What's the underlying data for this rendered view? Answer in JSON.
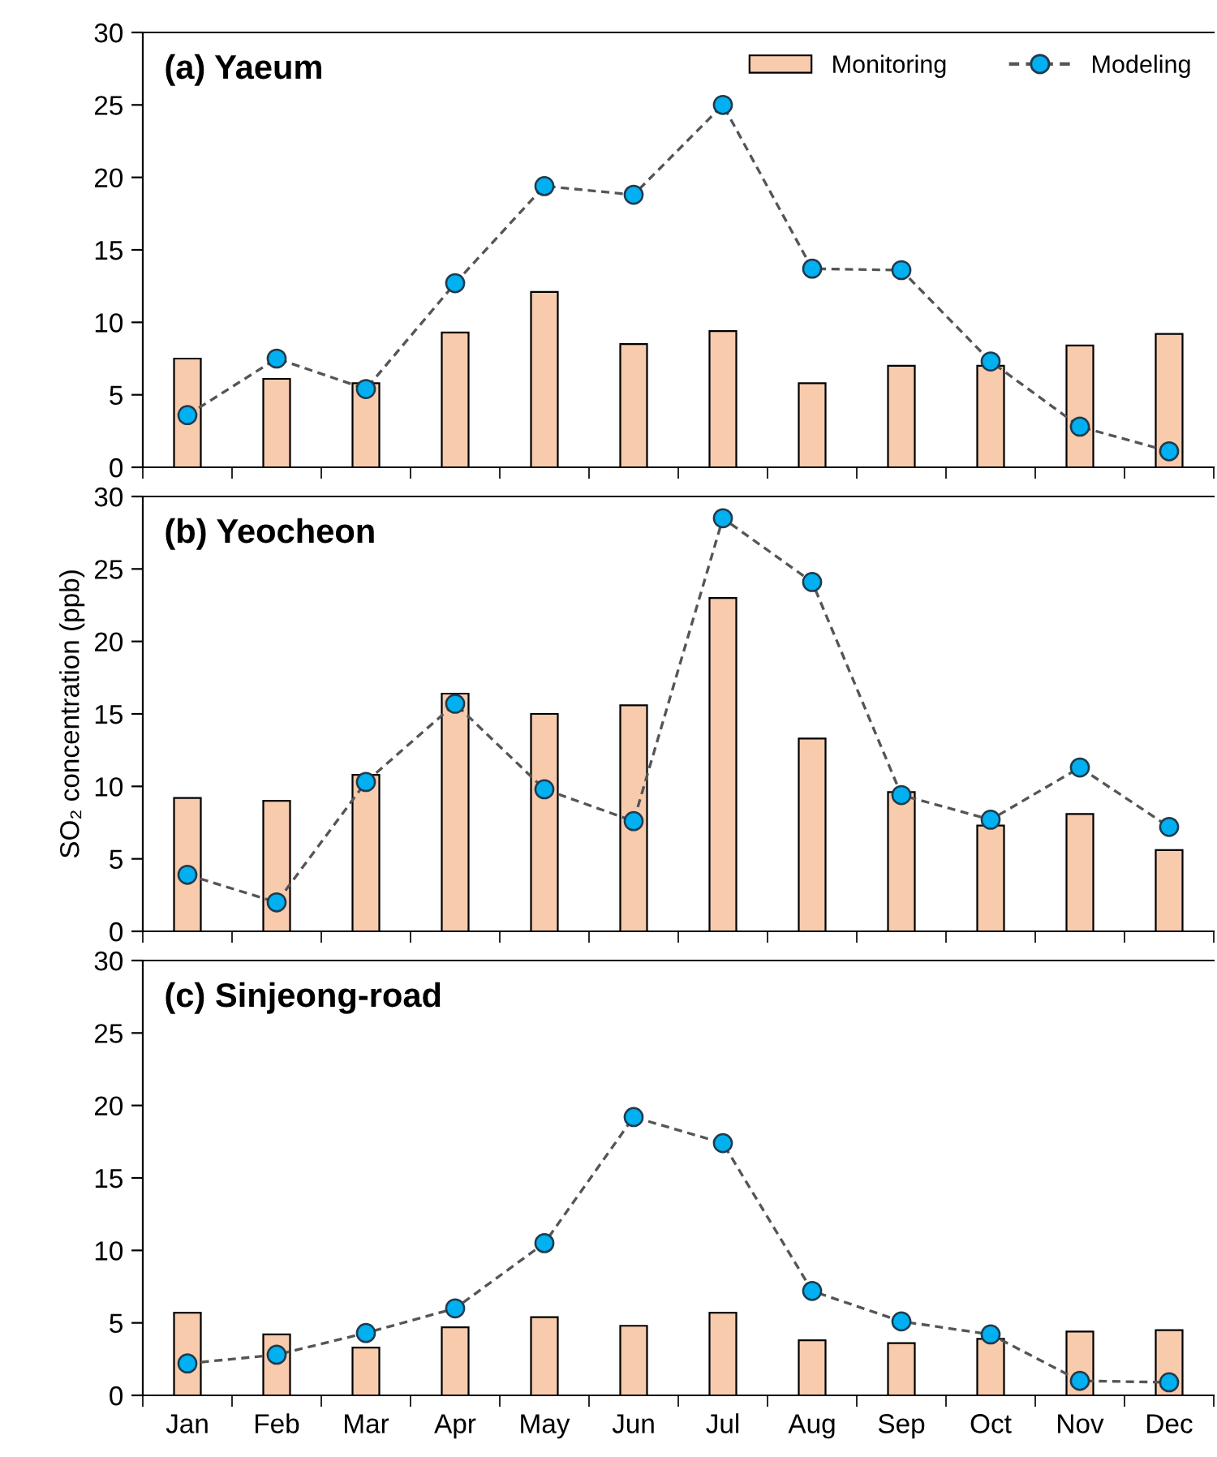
{
  "chart_data": [
    {
      "type": "bar",
      "title": "(a) Yaeum",
      "ylim": [
        0,
        30
      ],
      "yticks": [
        0,
        5,
        10,
        15,
        20,
        25,
        30
      ],
      "tick_labels": "y",
      "legend": "top right",
      "grid": false,
      "series": [
        {
          "name": "Monitoring",
          "color": "#f8cbad",
          "values": [
            7.5,
            6.1,
            5.8,
            9.3,
            12.1,
            8.5,
            9.4,
            5.8,
            7.0,
            7.0,
            8.4,
            9.2
          ]
        },
        {
          "name": "Modeling",
          "type": "line",
          "color": "#00b0f0",
          "marker": "circle",
          "line_style": "dashed",
          "values": [
            3.6,
            7.5,
            5.4,
            12.7,
            19.4,
            18.8,
            25.0,
            13.7,
            13.6,
            7.3,
            2.8,
            1.1
          ]
        }
      ]
    },
    {
      "type": "bar",
      "title": "(b) Yeocheon",
      "ylabel": "SO₂ concentration (ppb)",
      "ylim": [
        0,
        30
      ],
      "yticks": [
        0,
        5,
        10,
        15,
        20,
        25,
        30
      ],
      "tick_labels": "y",
      "grid": false,
      "series": [
        {
          "color": "#f8cbad",
          "values": [
            9.2,
            9.0,
            10.8,
            16.4,
            15.0,
            15.6,
            23.0,
            13.3,
            9.6,
            7.3,
            8.1,
            5.6
          ]
        },
        {
          "type": "line",
          "color": "#00b0f0",
          "marker": "circle",
          "line_style": "dashed",
          "values": [
            3.9,
            2.0,
            10.3,
            15.7,
            9.8,
            7.6,
            28.5,
            24.1,
            9.4,
            7.7,
            11.3,
            7.2
          ]
        }
      ]
    },
    {
      "type": "bar",
      "title": "(c) Sinjeong-road",
      "categories": [
        "Jan",
        "Feb",
        "Mar",
        "Apr",
        "May",
        "Jun",
        "Jul",
        "Aug",
        "Sep",
        "Oct",
        "Nov",
        "Dec"
      ],
      "ylim": [
        0,
        30
      ],
      "yticks": [
        0,
        5,
        10,
        15,
        20,
        25,
        30
      ],
      "grid": false,
      "series": [
        {
          "color": "#f8cbad",
          "values": [
            5.7,
            4.2,
            3.3,
            4.7,
            5.4,
            4.8,
            5.7,
            3.8,
            3.6,
            3.9,
            4.4,
            4.5
          ]
        },
        {
          "type": "line",
          "color": "#00b0f0",
          "marker": "circle",
          "line_style": "dashed",
          "values": [
            2.2,
            2.8,
            4.3,
            6.0,
            10.5,
            19.2,
            17.4,
            7.2,
            5.1,
            4.2,
            1.0,
            0.9
          ]
        }
      ]
    }
  ]
}
